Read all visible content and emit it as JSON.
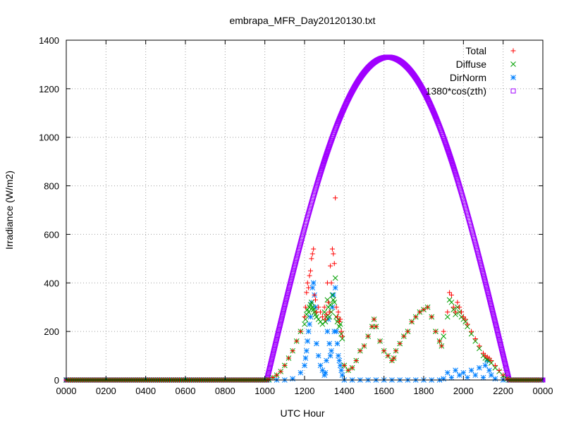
{
  "chart_data": {
    "type": "scatter",
    "title": "embrapa_MFR_Day20120130.txt",
    "xlabel": "UTC Hour",
    "ylabel": "Irradiance (W/m2)",
    "xlim": [
      0,
      24
    ],
    "ylim": [
      0,
      1400
    ],
    "grid": true,
    "legend_position": "top-right",
    "x_ticks": [
      {
        "value": 0,
        "label": "0000"
      },
      {
        "value": 2,
        "label": "0200"
      },
      {
        "value": 4,
        "label": "0400"
      },
      {
        "value": 6,
        "label": "0600"
      },
      {
        "value": 8,
        "label": "0800"
      },
      {
        "value": 10,
        "label": "1000"
      },
      {
        "value": 12,
        "label": "1200"
      },
      {
        "value": 14,
        "label": "1400"
      },
      {
        "value": 16,
        "label": "1600"
      },
      {
        "value": 18,
        "label": "1800"
      },
      {
        "value": 20,
        "label": "2000"
      },
      {
        "value": 22,
        "label": "2200"
      },
      {
        "value": 24,
        "label": "0000"
      }
    ],
    "y_ticks": [
      0,
      200,
      400,
      600,
      800,
      1000,
      1200,
      1400
    ],
    "series": [
      {
        "name": "Total",
        "marker": "plus",
        "color": "#ff0000",
        "x": [
          10.2,
          10.4,
          10.6,
          10.8,
          11.0,
          11.2,
          11.4,
          11.6,
          11.8,
          12.0,
          12.05,
          12.1,
          12.15,
          12.2,
          12.25,
          12.3,
          12.35,
          12.4,
          12.45,
          12.5,
          12.55,
          12.6,
          12.7,
          12.8,
          12.9,
          13.0,
          13.05,
          13.1,
          13.15,
          13.2,
          13.25,
          13.3,
          13.35,
          13.4,
          13.45,
          13.5,
          13.55,
          13.6,
          13.65,
          13.7,
          13.75,
          13.8,
          13.85,
          13.9,
          14.0,
          14.2,
          14.4,
          14.6,
          14.8,
          15.0,
          15.2,
          15.4,
          15.5,
          15.6,
          15.8,
          16.0,
          16.2,
          16.4,
          16.5,
          16.6,
          16.8,
          17.0,
          17.2,
          17.4,
          17.6,
          17.8,
          18.0,
          18.2,
          18.4,
          18.6,
          18.8,
          18.9,
          19.0,
          19.2,
          19.3,
          19.4,
          19.5,
          19.6,
          19.7,
          19.8,
          19.9,
          20.0,
          20.1,
          20.2,
          20.4,
          20.6,
          20.8,
          21.0,
          21.1,
          21.2,
          21.3,
          21.4,
          21.6,
          21.8,
          22.0,
          22.2
        ],
        "y": [
          2,
          10,
          20,
          35,
          60,
          90,
          120,
          160,
          200,
          260,
          300,
          360,
          400,
          380,
          430,
          450,
          500,
          520,
          540,
          350,
          330,
          280,
          300,
          280,
          260,
          300,
          250,
          270,
          400,
          320,
          280,
          470,
          400,
          540,
          520,
          480,
          750,
          300,
          260,
          280,
          240,
          250,
          200,
          180,
          60,
          40,
          50,
          80,
          120,
          140,
          180,
          220,
          250,
          220,
          160,
          120,
          100,
          80,
          90,
          120,
          150,
          180,
          200,
          240,
          260,
          280,
          290,
          300,
          260,
          200,
          160,
          140,
          200,
          280,
          360,
          350,
          300,
          280,
          320,
          300,
          280,
          260,
          250,
          230,
          200,
          170,
          140,
          110,
          100,
          95,
          90,
          80,
          60,
          40,
          20,
          5
        ]
      },
      {
        "name": "Diffuse",
        "marker": "cross",
        "color": "#00a000",
        "x": [
          10.2,
          10.4,
          10.6,
          10.8,
          11.0,
          11.2,
          11.4,
          11.6,
          11.8,
          12.0,
          12.05,
          12.1,
          12.15,
          12.2,
          12.25,
          12.3,
          12.35,
          12.4,
          12.45,
          12.5,
          12.55,
          12.6,
          12.7,
          12.8,
          12.9,
          13.0,
          13.05,
          13.1,
          13.15,
          13.2,
          13.25,
          13.3,
          13.35,
          13.4,
          13.45,
          13.5,
          13.55,
          13.6,
          13.65,
          13.7,
          13.75,
          13.8,
          13.85,
          13.9,
          14.0,
          14.2,
          14.4,
          14.6,
          14.8,
          15.0,
          15.2,
          15.4,
          15.5,
          15.6,
          15.8,
          16.0,
          16.2,
          16.4,
          16.5,
          16.6,
          16.8,
          17.0,
          17.2,
          17.4,
          17.6,
          17.8,
          18.0,
          18.2,
          18.4,
          18.6,
          18.8,
          18.9,
          19.0,
          19.2,
          19.3,
          19.4,
          19.5,
          19.6,
          19.7,
          19.8,
          19.9,
          20.0,
          20.1,
          20.2,
          20.4,
          20.6,
          20.8,
          21.0,
          21.1,
          21.2,
          21.3,
          21.4,
          21.6,
          21.8,
          22.0,
          22.2
        ],
        "y": [
          2,
          10,
          20,
          35,
          60,
          90,
          120,
          160,
          200,
          230,
          250,
          270,
          290,
          280,
          300,
          310,
          320,
          300,
          290,
          280,
          270,
          260,
          250,
          240,
          230,
          280,
          240,
          260,
          330,
          300,
          260,
          310,
          280,
          350,
          330,
          320,
          420,
          260,
          240,
          250,
          220,
          230,
          190,
          170,
          60,
          40,
          50,
          80,
          120,
          140,
          180,
          220,
          250,
          220,
          160,
          120,
          100,
          80,
          90,
          120,
          150,
          180,
          200,
          240,
          260,
          280,
          290,
          300,
          260,
          200,
          160,
          140,
          180,
          260,
          330,
          320,
          290,
          270,
          300,
          280,
          260,
          250,
          240,
          220,
          190,
          160,
          130,
          100,
          90,
          85,
          80,
          70,
          50,
          35,
          18,
          5
        ]
      },
      {
        "name": "DirNorm",
        "marker": "star",
        "color": "#0080ff",
        "x": [
          10.2,
          10.6,
          11.0,
          11.4,
          11.8,
          12.0,
          12.05,
          12.1,
          12.15,
          12.2,
          12.25,
          12.3,
          12.35,
          12.4,
          12.45,
          12.5,
          12.55,
          12.6,
          12.7,
          12.8,
          12.9,
          13.0,
          13.05,
          13.1,
          13.15,
          13.2,
          13.25,
          13.3,
          13.35,
          13.4,
          13.45,
          13.5,
          13.55,
          13.6,
          13.65,
          13.7,
          13.75,
          13.8,
          13.85,
          13.9,
          14.0,
          14.4,
          14.8,
          15.2,
          15.6,
          16.0,
          16.4,
          16.8,
          17.2,
          17.6,
          18.0,
          18.4,
          18.8,
          19.0,
          19.2,
          19.4,
          19.6,
          19.8,
          20.0,
          20.2,
          20.4,
          20.6,
          20.8,
          21.0,
          21.1,
          21.2,
          21.3,
          21.4,
          21.6,
          22.0
        ],
        "y": [
          0,
          0,
          0,
          5,
          30,
          60,
          90,
          120,
          160,
          200,
          230,
          260,
          320,
          380,
          400,
          350,
          300,
          150,
          100,
          60,
          40,
          20,
          30,
          80,
          200,
          250,
          150,
          100,
          120,
          300,
          350,
          200,
          380,
          200,
          150,
          100,
          80,
          60,
          40,
          20,
          0,
          0,
          0,
          0,
          0,
          0,
          0,
          0,
          0,
          0,
          0,
          0,
          0,
          5,
          30,
          10,
          40,
          20,
          30,
          10,
          40,
          20,
          50,
          10,
          60,
          80,
          40,
          20,
          5,
          0
        ]
      },
      {
        "name": "1380*cos(zth)",
        "marker": "square",
        "color": "#a000ff",
        "sunrise": 10.1,
        "sunset": 22.3,
        "peak": 1330
      }
    ]
  }
}
